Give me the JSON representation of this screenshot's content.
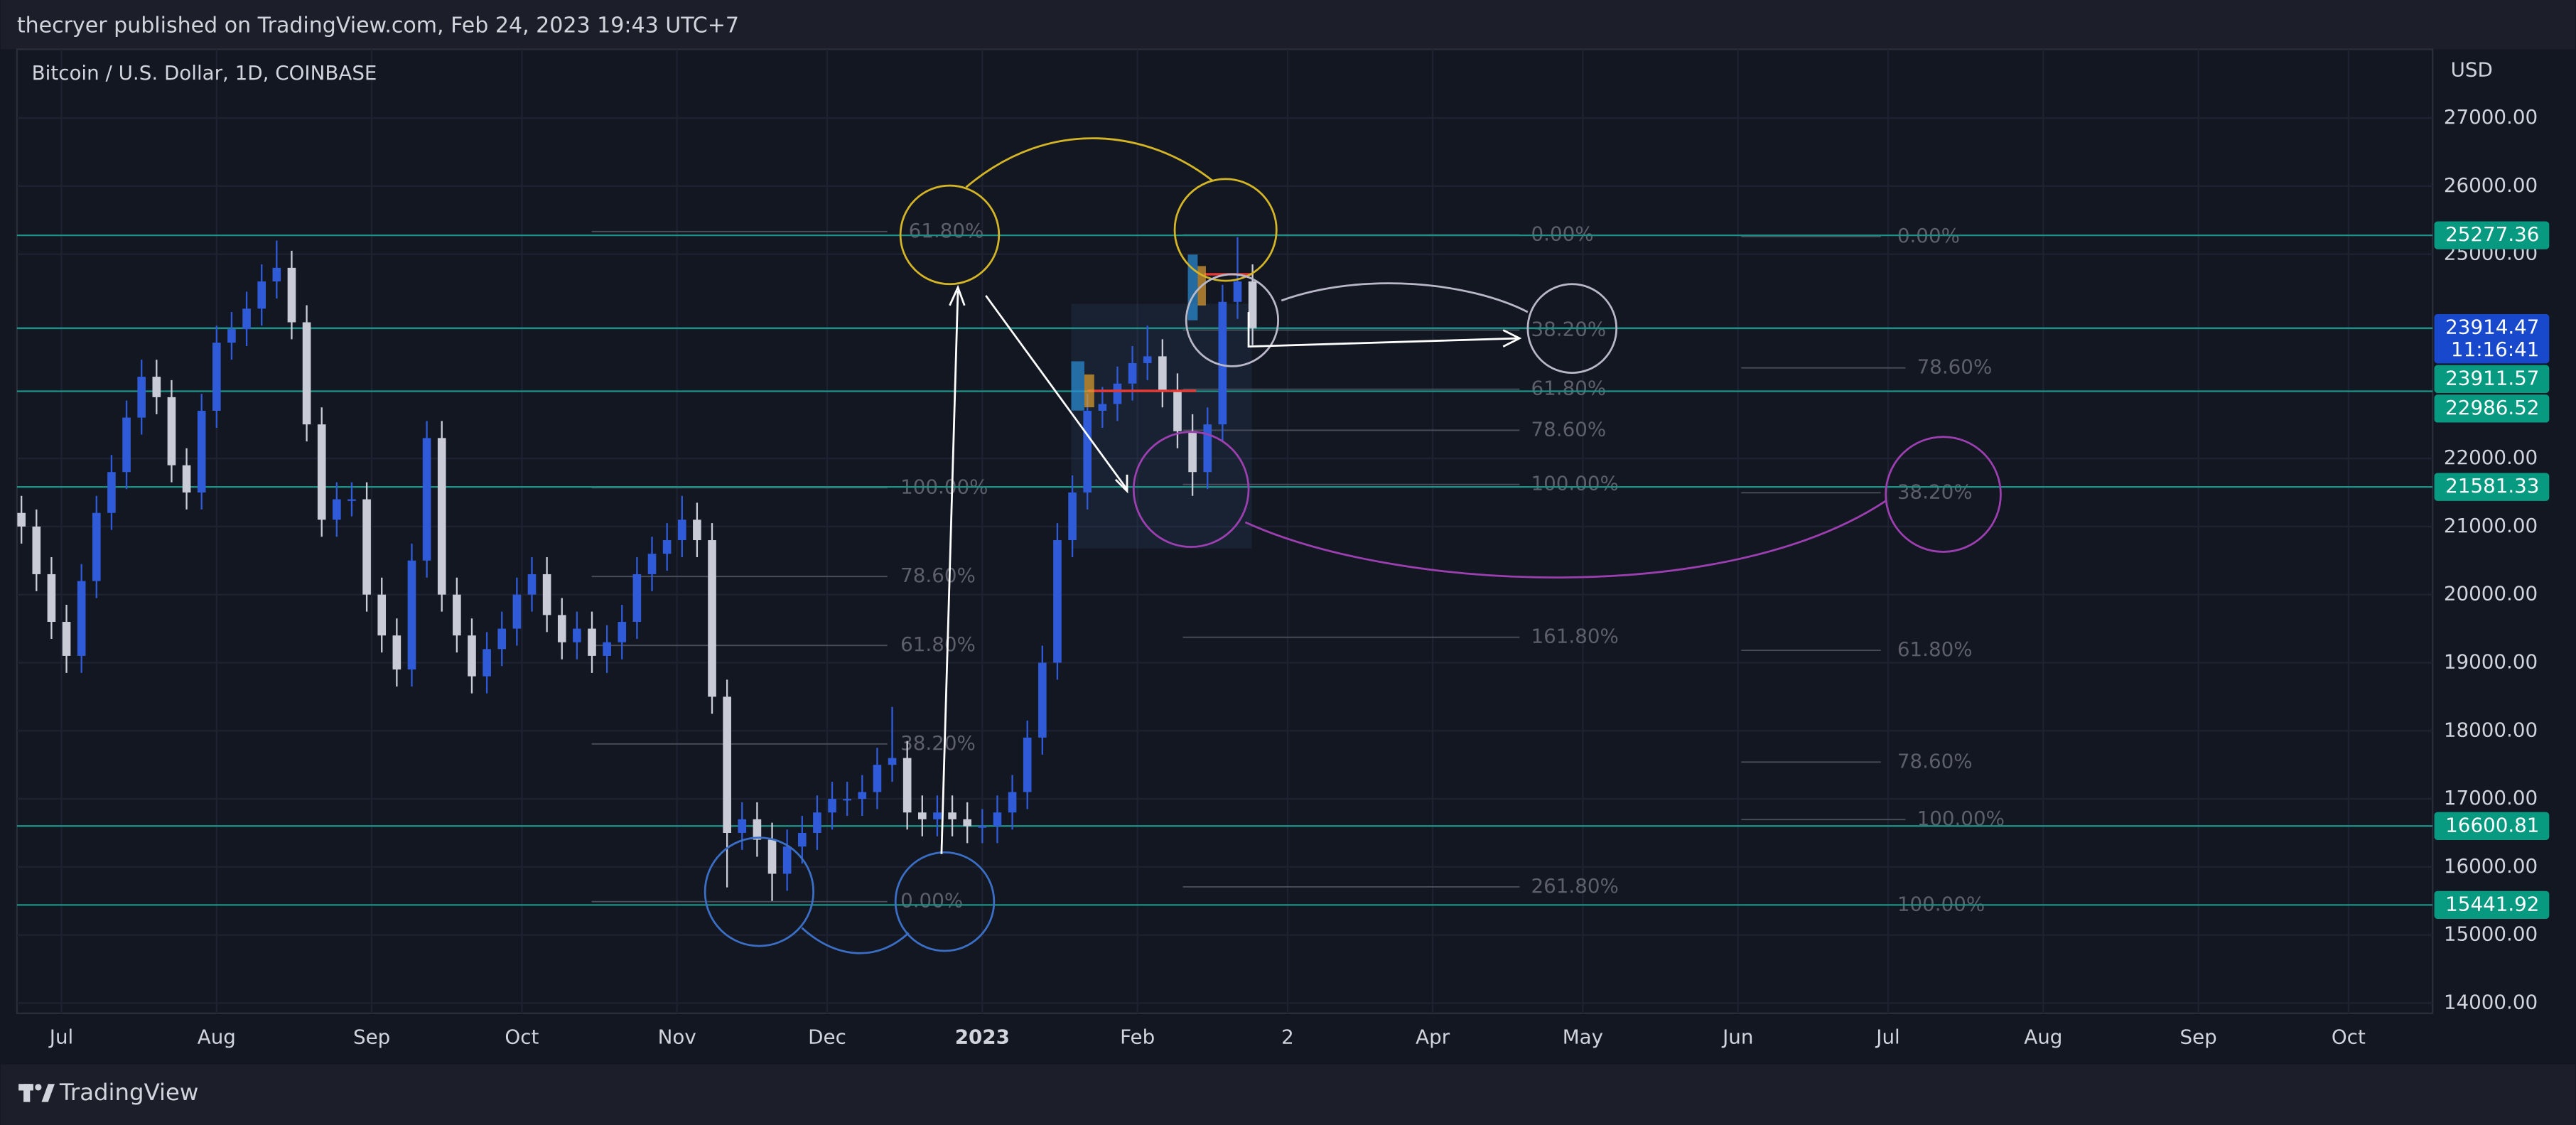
{
  "header": {
    "publisher": "thecryer published on TradingView.com, Feb 24, 2023 19:43 UTC+7"
  },
  "footer": {
    "brand": "TradingView"
  },
  "chart_data": {
    "type": "candlestick",
    "title": "Bitcoin / U.S. Dollar, 1D, COINBASE",
    "currency": "USD",
    "up_color": "#2f5bd8",
    "down_color": "#c9ccd6",
    "xlim": [
      -8.9,
      473.8
    ],
    "ylim": [
      13850,
      28010
    ],
    "xticks": [
      {
        "value": 0,
        "label": "Jul"
      },
      {
        "value": 31,
        "label": "Aug"
      },
      {
        "value": 62,
        "label": "Sep"
      },
      {
        "value": 92,
        "label": "Oct"
      },
      {
        "value": 123,
        "label": "Nov"
      },
      {
        "value": 153,
        "label": "Dec"
      },
      {
        "value": 184,
        "label": "2023"
      },
      {
        "value": 215,
        "label": "Feb"
      },
      {
        "value": 245,
        "label": "2"
      },
      {
        "value": 274,
        "label": "Apr"
      },
      {
        "value": 304,
        "label": "May"
      },
      {
        "value": 335,
        "label": "Jun"
      },
      {
        "value": 365,
        "label": "Jul"
      },
      {
        "value": 396,
        "label": "Aug"
      },
      {
        "value": 427,
        "label": "Sep"
      },
      {
        "value": 457,
        "label": "Oct"
      }
    ],
    "yticks": [
      {
        "value": 14000,
        "label": "14000.00"
      },
      {
        "value": 15000,
        "label": "15000.00"
      },
      {
        "value": 16000,
        "label": "16000.00"
      },
      {
        "value": 17000,
        "label": "17000.00"
      },
      {
        "value": 18000,
        "label": "18000.00"
      },
      {
        "value": 19000,
        "label": "19000.00"
      },
      {
        "value": 20000,
        "label": "20000.00"
      },
      {
        "value": 21000,
        "label": "21000.00"
      },
      {
        "value": 22000,
        "label": "22000.00"
      },
      {
        "value": 25000,
        "label": "25000.00"
      },
      {
        "value": 26000,
        "label": "26000.00"
      },
      {
        "value": 27000,
        "label": "27000.00"
      }
    ],
    "x": [
      -8,
      -5,
      -2,
      1,
      4,
      7,
      10,
      13,
      16,
      19,
      22,
      25,
      28,
      31,
      34,
      37,
      40,
      43,
      46,
      49,
      52,
      55,
      58,
      61,
      64,
      67,
      70,
      73,
      76,
      79,
      82,
      85,
      88,
      91,
      94,
      97,
      100,
      103,
      106,
      109,
      112,
      115,
      118,
      121,
      124,
      127,
      130,
      133,
      136,
      139,
      142,
      145,
      148,
      151,
      154,
      157,
      160,
      163,
      166,
      169,
      172,
      175,
      178,
      181,
      184,
      187,
      190,
      193,
      196,
      199,
      202,
      205,
      208,
      211,
      214,
      217,
      220,
      223,
      226,
      229,
      232,
      235,
      238
    ],
    "open": [
      21200,
      21000,
      20300,
      19600,
      19100,
      20200,
      21200,
      21800,
      22600,
      23200,
      22900,
      21900,
      21500,
      22700,
      23700,
      23900,
      24200,
      24600,
      24800,
      24000,
      22500,
      21100,
      21400,
      21400,
      20000,
      19400,
      18900,
      20500,
      22300,
      20000,
      19400,
      18800,
      19200,
      19500,
      20000,
      20300,
      19700,
      19300,
      19500,
      19100,
      19300,
      19600,
      20300,
      20600,
      20800,
      21100,
      20800,
      18500,
      16500,
      16700,
      16400,
      15900,
      16300,
      16500,
      16800,
      17000,
      17000,
      17100,
      17500,
      17600,
      16800,
      16700,
      16800,
      16700,
      16600,
      16600,
      16800,
      17100,
      17900,
      19000,
      20800,
      21500,
      22700,
      22800,
      23100,
      23400,
      23500,
      23000,
      22400,
      21800,
      22500,
      24300,
      24600
    ],
    "high": [
      21450,
      21250,
      20550,
      19850,
      20450,
      21450,
      22050,
      22850,
      23450,
      23450,
      23150,
      22150,
      22950,
      23950,
      24150,
      24450,
      24850,
      25200,
      25050,
      24250,
      22750,
      21650,
      21650,
      21650,
      20250,
      19650,
      20750,
      22550,
      22550,
      20250,
      19650,
      19450,
      19750,
      20250,
      20550,
      20550,
      19950,
      19750,
      19750,
      19550,
      19850,
      20550,
      20850,
      21050,
      21450,
      21350,
      21050,
      18750,
      16950,
      16950,
      16650,
      16550,
      16750,
      17050,
      17250,
      17250,
      17350,
      17750,
      18350,
      17850,
      17050,
      17050,
      17050,
      16950,
      16850,
      17050,
      17350,
      18150,
      19250,
      21050,
      21750,
      22950,
      23050,
      23350,
      23650,
      23950,
      23750,
      23250,
      22650,
      22750,
      24550,
      25250,
      24850
    ],
    "low": [
      20750,
      20050,
      19350,
      18850,
      18850,
      19950,
      20950,
      21550,
      22350,
      22650,
      21650,
      21250,
      21250,
      22450,
      23450,
      23650,
      23950,
      24350,
      23750,
      22250,
      20850,
      20850,
      21150,
      19750,
      19150,
      18650,
      18650,
      20250,
      19750,
      19150,
      18550,
      18550,
      18950,
      19250,
      19750,
      19450,
      19050,
      19050,
      18850,
      18850,
      19050,
      19350,
      20050,
      20350,
      20550,
      20550,
      18250,
      15700,
      16250,
      16150,
      15500,
      15650,
      16050,
      16250,
      16550,
      16750,
      16750,
      16850,
      17250,
      16550,
      16450,
      16450,
      16450,
      16350,
      16350,
      16350,
      16550,
      16850,
      17650,
      18750,
      20550,
      21250,
      22450,
      22550,
      22850,
      23150,
      22750,
      22150,
      21450,
      21550,
      22250,
      24050,
      23664
    ],
    "close": [
      21000,
      20300,
      19600,
      19100,
      20200,
      21200,
      21800,
      22600,
      23200,
      22900,
      21900,
      21500,
      22700,
      23700,
      23900,
      24200,
      24600,
      24800,
      24000,
      22500,
      21100,
      21400,
      21400,
      20000,
      19400,
      18900,
      20500,
      22300,
      20000,
      19400,
      18800,
      19200,
      19500,
      20000,
      20300,
      19700,
      19300,
      19500,
      19100,
      19300,
      19600,
      20300,
      20600,
      20800,
      21100,
      20800,
      18500,
      16500,
      16700,
      16400,
      15900,
      16300,
      16500,
      16800,
      17000,
      17000,
      17100,
      17500,
      17600,
      16800,
      16700,
      16800,
      16700,
      16600,
      16600,
      16800,
      17100,
      17900,
      19000,
      20800,
      21500,
      22700,
      22800,
      23100,
      23400,
      23500,
      23000,
      22400,
      21800,
      22500,
      24300,
      24600,
      23914
    ],
    "price_lines": [
      {
        "value": 25277.36,
        "color": "#089981"
      },
      {
        "value": 23914.47,
        "color": "#1848cc",
        "countdown": "11:16:41"
      },
      {
        "value": 23911.57,
        "color": "#089981"
      },
      {
        "value": 22986.52,
        "color": "#089981"
      },
      {
        "value": 21581.33,
        "color": "#089981"
      },
      {
        "value": 16600.81,
        "color": "#089981"
      },
      {
        "value": 15441.92,
        "color": "#089981"
      }
    ],
    "annotations": [
      "61.80%",
      "100.00%",
      "78.60%",
      "61.80%",
      "38.20%",
      "0.00%",
      "0.00%",
      "38.20%",
      "61.80%",
      "78.60%",
      "100.00%",
      "161.80%",
      "261.80%",
      "0.00%",
      "78.60%",
      "38.20%",
      "61.80%",
      "78.60%",
      "100.00%",
      "100.00%"
    ]
  }
}
